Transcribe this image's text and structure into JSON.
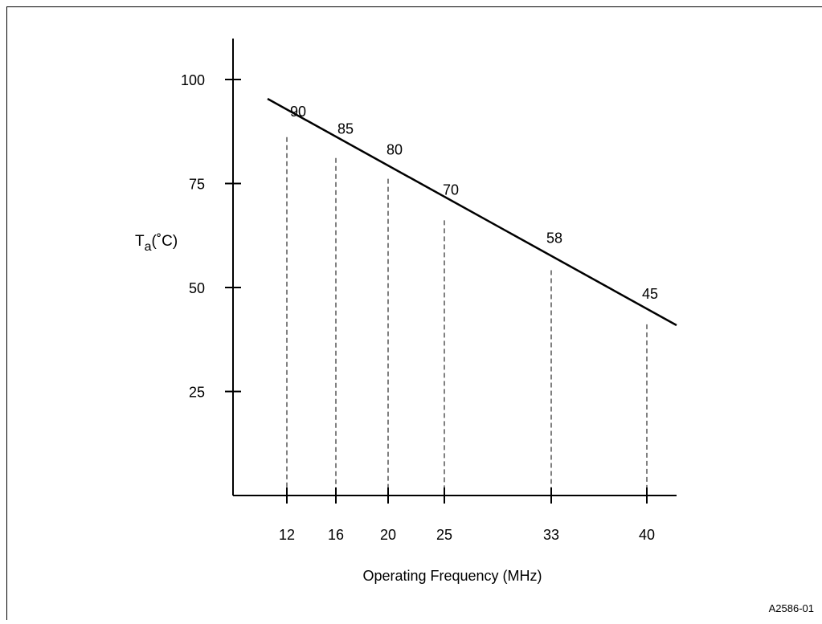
{
  "figure_id": "A2586-01",
  "chart_data": {
    "type": "line",
    "ylabel": "T",
    "ylabel_sub": "a",
    "ylabel_unit": "(˚C)",
    "xlabel": "Operating Frequency (MHz)",
    "yticks": [
      25,
      50,
      75,
      100
    ],
    "ylim": [
      0,
      110
    ],
    "x_categories": [
      "12",
      "16",
      "20",
      "25",
      "33",
      "40"
    ],
    "x": [
      12,
      16,
      20,
      25,
      33,
      40
    ],
    "values": [
      90,
      85,
      80,
      70,
      58,
      45
    ],
    "data_labels": [
      "90",
      "85",
      "80",
      "70",
      "58",
      "45"
    ],
    "drop_lines": "dashed",
    "grid": false,
    "colors": {
      "line": "#000000",
      "axis": "#000000"
    }
  }
}
